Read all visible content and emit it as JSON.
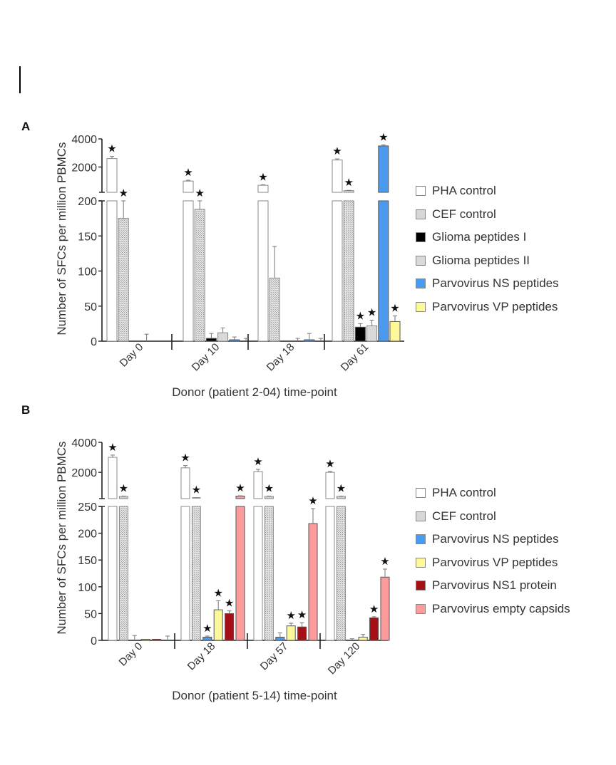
{
  "panels": [
    {
      "label": "A",
      "ylabel": "Number of SFCs per million PBMCs",
      "xlabel": "Donor (patient 2-04) time-point",
      "legend": [
        {
          "name": "PHA control",
          "color": "#ffffff",
          "pattern": "none"
        },
        {
          "name": "CEF control",
          "color": "#d6d6d6",
          "pattern": "hatch"
        },
        {
          "name": "Glioma peptides I",
          "color": "#000000",
          "pattern": "none"
        },
        {
          "name": "Glioma peptides II",
          "color": "#d9d9d9",
          "pattern": "none"
        },
        {
          "name": "Parvovirus NS peptides",
          "color": "#4a9af0",
          "pattern": "none"
        },
        {
          "name": "Parvovirus VP peptides",
          "color": "#fdf89a",
          "pattern": "none"
        }
      ]
    },
    {
      "label": "B",
      "ylabel": "Number of SFCs per million PBMCs",
      "xlabel": "Donor (patient 5-14) time-point",
      "legend": [
        {
          "name": "PHA control",
          "color": "#ffffff",
          "pattern": "none"
        },
        {
          "name": "CEF control",
          "color": "#d6d6d6",
          "pattern": "hatch"
        },
        {
          "name": "Parvovirus NS peptides",
          "color": "#4a9af0",
          "pattern": "none"
        },
        {
          "name": "Parvovirus VP peptides",
          "color": "#fdf89a",
          "pattern": "none"
        },
        {
          "name": "Parvovirus NS1 protein",
          "color": "#a50f15",
          "pattern": "none"
        },
        {
          "name": "Parvovirus empty capsids",
          "color": "#fc9c9c",
          "pattern": "none"
        }
      ]
    }
  ],
  "chart_data": [
    {
      "type": "bar",
      "title": "A",
      "xlabel": "Donor (patient 2-04) time-point",
      "ylabel": "Number of SFCs per million PBMCs",
      "categories": [
        "Day 0",
        "Day 10",
        "Day 18",
        "Day 61"
      ],
      "y_axis": {
        "broken": true,
        "lower": {
          "range": [
            0,
            200
          ],
          "ticks": [
            0,
            50,
            100,
            150,
            200
          ]
        },
        "upper": {
          "range": [
            200,
            4000
          ],
          "ticks": [
            2000,
            4000
          ]
        }
      },
      "series": [
        {
          "name": "PHA control",
          "values": [
            2600,
            1000,
            700,
            2500
          ],
          "errors": [
            150,
            60,
            40,
            80
          ],
          "significant": [
            true,
            true,
            true,
            true
          ]
        },
        {
          "name": "CEF control",
          "values": [
            175,
            188,
            90,
            320
          ],
          "errors": [
            25,
            12,
            45,
            20
          ],
          "significant": [
            true,
            true,
            false,
            true
          ]
        },
        {
          "name": "Glioma peptides I",
          "values": [
            0,
            4,
            0,
            20
          ],
          "errors": [
            0,
            7,
            0,
            5
          ],
          "significant": [
            false,
            false,
            false,
            true
          ]
        },
        {
          "name": "Glioma peptides II",
          "values": [
            0,
            12,
            0,
            22
          ],
          "errors": [
            10,
            7,
            4,
            8
          ],
          "significant": [
            false,
            false,
            false,
            true
          ]
        },
        {
          "name": "Parvovirus NS peptides",
          "values": [
            0,
            2,
            2,
            3500
          ],
          "errors": [
            0,
            4,
            9,
            80
          ],
          "significant": [
            false,
            false,
            false,
            true
          ]
        },
        {
          "name": "Parvovirus VP peptides",
          "values": [
            0,
            0,
            0,
            28
          ],
          "errors": [
            0,
            4,
            4,
            8
          ],
          "significant": [
            false,
            false,
            false,
            true
          ]
        }
      ],
      "legend_position": "right"
    },
    {
      "type": "bar",
      "title": "B",
      "xlabel": "Donor (patient 5-14) time-point",
      "ylabel": "Number of SFCs per million PBMCs",
      "categories": [
        "Day 0",
        "Day 18",
        "Day 57",
        "Day 120"
      ],
      "y_axis": {
        "broken": true,
        "lower": {
          "range": [
            0,
            250
          ],
          "ticks": [
            0,
            50,
            100,
            150,
            200,
            250
          ]
        },
        "upper": {
          "range": [
            250,
            4000
          ],
          "ticks": [
            2000,
            4000
          ]
        }
      },
      "series": [
        {
          "name": "PHA control",
          "values": [
            3000,
            2300,
            2050,
            2000
          ],
          "errors": [
            150,
            150,
            150,
            60
          ],
          "significant": [
            true,
            true,
            true,
            true
          ]
        },
        {
          "name": "CEF control",
          "values": [
            400,
            300,
            400,
            400
          ],
          "errors": [
            20,
            10,
            20,
            20
          ],
          "significant": [
            true,
            true,
            true,
            true
          ]
        },
        {
          "name": "Parvovirus NS peptides",
          "values": [
            0,
            6,
            6,
            0
          ],
          "errors": [
            9,
            2,
            8,
            3
          ],
          "significant": [
            false,
            true,
            false,
            false
          ]
        },
        {
          "name": "Parvovirus VP peptides",
          "values": [
            2,
            57,
            27,
            6
          ],
          "errors": [
            0,
            17,
            5,
            5
          ],
          "significant": [
            false,
            true,
            true,
            false
          ]
        },
        {
          "name": "Parvovirus NS1 protein",
          "values": [
            2,
            50,
            25,
            42
          ],
          "errors": [
            0,
            5,
            8,
            2
          ],
          "significant": [
            false,
            true,
            true,
            true
          ]
        },
        {
          "name": "Parvovirus empty capsids",
          "values": [
            0,
            420,
            218,
            118
          ],
          "errors": [
            8,
            20,
            28,
            15
          ],
          "significant": [
            false,
            true,
            true,
            true
          ]
        }
      ],
      "legend_position": "right"
    }
  ]
}
